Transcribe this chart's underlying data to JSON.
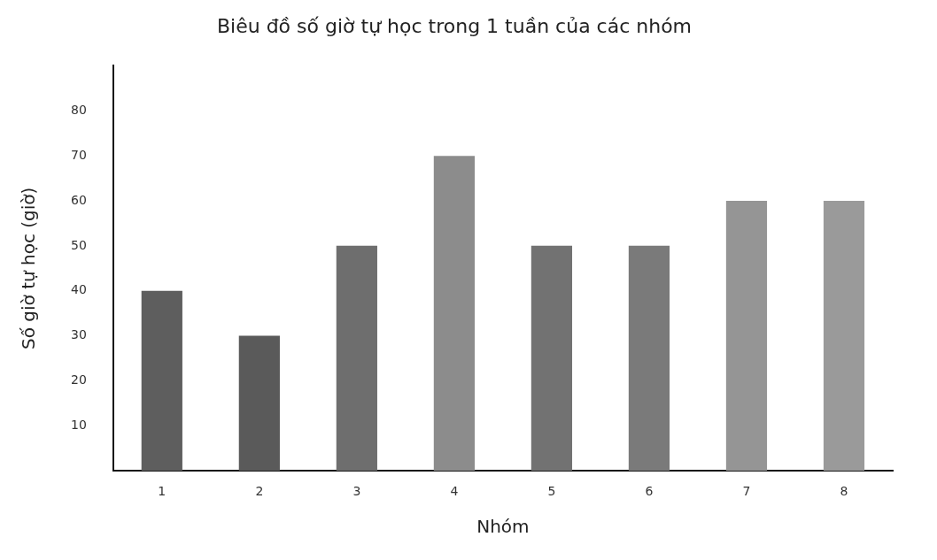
{
  "chart_data": {
    "type": "bar",
    "title": "Biêu đồ số giờ tự học trong 1 tuần của các nhóm",
    "xlabel": "Nhóm",
    "ylabel": "Số giờ tự học (giờ)",
    "categories": [
      "1",
      "2",
      "3",
      "4",
      "5",
      "6",
      "7",
      "8"
    ],
    "values": [
      40,
      30,
      50,
      70,
      50,
      50,
      60,
      60
    ],
    "colors": [
      "#5e5e5e",
      "#5a5a5a",
      "#6e6e6e",
      "#8c8c8c",
      "#727272",
      "#7a7a7a",
      "#959595",
      "#9a9a9a"
    ],
    "ylim": [
      0,
      90
    ],
    "yticks": [
      10,
      20,
      30,
      40,
      50,
      60,
      70,
      80
    ],
    "grid": false,
    "legend": false
  }
}
